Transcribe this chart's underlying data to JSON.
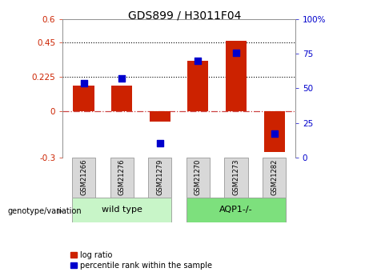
{
  "title": "GDS899 / H3011F04",
  "samples": [
    "GSM21266",
    "GSM21276",
    "GSM21279",
    "GSM21270",
    "GSM21273",
    "GSM21282"
  ],
  "log_ratios": [
    0.17,
    0.17,
    -0.065,
    0.33,
    0.46,
    -0.265
  ],
  "percentile_ranks": [
    54,
    57,
    10,
    70,
    76,
    17
  ],
  "groups": [
    "wild type",
    "wild type",
    "wild type",
    "AQP1-/-",
    "AQP1-/-",
    "AQP1-/-"
  ],
  "group_colors": {
    "wild type": "#c8f5c8",
    "AQP1-/-": "#7de07d"
  },
  "bar_color": "#cc2200",
  "dot_color": "#0000cc",
  "left_ylim": [
    -0.3,
    0.6
  ],
  "left_yticks": [
    -0.3,
    0.0,
    0.225,
    0.45,
    0.6
  ],
  "left_ytick_labels": [
    "-0.3",
    "0",
    "0.225",
    "0.45",
    "0.6"
  ],
  "right_ylim": [
    0,
    100
  ],
  "right_yticks": [
    0,
    25,
    50,
    75,
    100
  ],
  "right_ytick_labels": [
    "0",
    "25",
    "50",
    "75",
    "100%"
  ],
  "hlines": [
    0.225,
    0.45
  ],
  "zero_line": 0.0,
  "genotype_label": "genotype/variation",
  "legend_log_ratio": "log ratio",
  "legend_percentile": "percentile rank within the sample",
  "bar_width": 0.55,
  "dot_size": 40,
  "sample_box_color": "#d8d8d8",
  "title_fontsize": 10,
  "tick_fontsize": 7.5,
  "label_fontsize": 7,
  "group_fontsize": 8
}
